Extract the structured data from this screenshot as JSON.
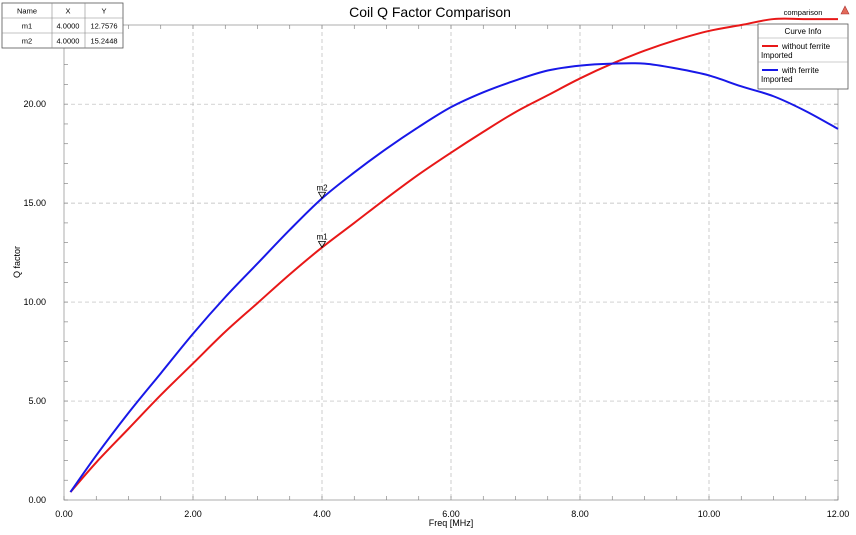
{
  "chart_data": {
    "type": "line",
    "title": "Coil Q Factor Comparison",
    "xlabel": "Freq [MHz]",
    "ylabel": "Q factor",
    "xlim": [
      0,
      12
    ],
    "ylim": [
      0,
      24
    ],
    "x_ticks": [
      "0.00",
      "2.00",
      "4.00",
      "6.00",
      "8.00",
      "10.00",
      "12.00"
    ],
    "y_ticks": [
      "0.00",
      "5.00",
      "10.00",
      "15.00",
      "20.00"
    ],
    "x_tick_values": [
      0,
      2,
      4,
      6,
      8,
      10,
      12
    ],
    "y_tick_values": [
      0,
      5,
      10,
      15,
      20
    ],
    "series": [
      {
        "name": "without ferrite",
        "source": "Imported",
        "color": "#e81818",
        "x": [
          0.1,
          0.5,
          1,
          1.5,
          2,
          2.5,
          3,
          3.5,
          4,
          4.5,
          5,
          5.5,
          6,
          6.5,
          7,
          7.5,
          8,
          8.5,
          9,
          9.5,
          10,
          10.5,
          11,
          11.5,
          12
        ],
        "y": [
          0.4,
          1.9,
          3.6,
          5.3,
          6.9,
          8.5,
          9.95,
          11.4,
          12.76,
          14.0,
          15.25,
          16.45,
          17.55,
          18.6,
          19.6,
          20.45,
          21.3,
          22.05,
          22.7,
          23.25,
          23.7,
          24.0,
          24.3,
          24.45,
          24.55
        ]
      },
      {
        "name": "with ferrite",
        "source": "Imported",
        "color": "#1818e8",
        "x": [
          0.1,
          0.5,
          1,
          1.5,
          2,
          2.5,
          3,
          3.5,
          4,
          4.5,
          5,
          5.5,
          6,
          6.5,
          7,
          7.5,
          8,
          8.5,
          9,
          9.5,
          10,
          10.5,
          11,
          11.5,
          12
        ],
        "y": [
          0.4,
          2.25,
          4.4,
          6.4,
          8.4,
          10.25,
          11.95,
          13.65,
          15.24,
          16.55,
          17.75,
          18.85,
          19.85,
          20.6,
          21.2,
          21.7,
          21.95,
          22.05,
          22.05,
          21.8,
          21.45,
          20.9,
          20.4,
          19.65,
          18.75
        ]
      }
    ],
    "markers": [
      {
        "name": "m1",
        "x": 4.0,
        "y": 12.7576,
        "series": 0
      },
      {
        "name": "m2",
        "x": 4.0,
        "y": 15.2448,
        "series": 1
      }
    ],
    "marker_table": {
      "headers": [
        "Name",
        "X",
        "Y"
      ],
      "rows": [
        [
          "m1",
          "4.0000",
          "12.7576"
        ],
        [
          "m2",
          "4.0000",
          "15.2448"
        ]
      ]
    },
    "legend": {
      "title": "Curve Info",
      "position": "top-right"
    },
    "grid": true
  },
  "report_name": "comparison"
}
